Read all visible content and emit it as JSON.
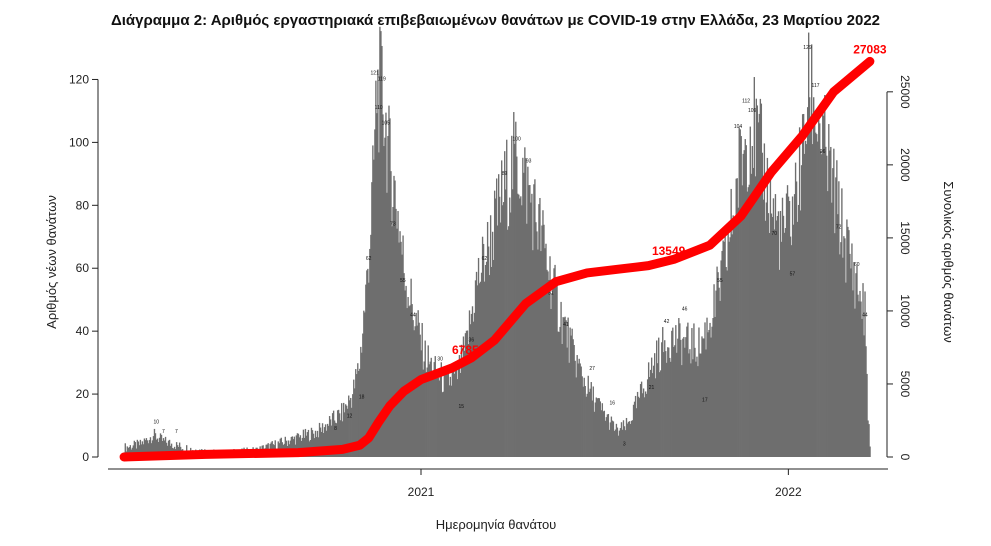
{
  "chart_data": {
    "type": "bar",
    "title": "Διάγραμμα 2: Αριθμός εργαστηριακά επιβεβαιωμένων θανάτων με COVID-19 στην Ελλάδα, 23 Μαρτίου 2022",
    "xlabel": "Ημερομηνία θανάτου",
    "ylabel": "Αριθμός νέων θανάτων",
    "y2label": "Συνολικός αριθμός θανάτων",
    "x_start": "2020-03-12",
    "x_end": "2022-03-23",
    "xlim": [
      "2020-02-25",
      "2022-04-10"
    ],
    "x_ticks": [
      {
        "date": "2021-01-01",
        "label": "2021"
      },
      {
        "date": "2022-01-01",
        "label": "2022"
      }
    ],
    "ylim": [
      0,
      130
    ],
    "y_ticks": [
      0,
      20,
      40,
      60,
      80,
      100,
      120
    ],
    "y2lim": [
      0,
      28000
    ],
    "y2_ticks": [
      0,
      5000,
      10000,
      15000,
      20000,
      25000
    ],
    "bar_color": "#6e6e6e",
    "line_color": "#ff0000",
    "series": [
      {
        "name": "",
        "kind": "bars",
        "keypoints": [
          {
            "date": "2020-03-12",
            "value": 3
          },
          {
            "date": "2020-03-28",
            "value": 4
          },
          {
            "date": "2020-04-10",
            "value": 7
          },
          {
            "date": "2020-04-20",
            "value": 5
          },
          {
            "date": "2020-05-10",
            "value": 3
          },
          {
            "date": "2020-06-15",
            "value": 1
          },
          {
            "date": "2020-07-20",
            "value": 2
          },
          {
            "date": "2020-08-20",
            "value": 5
          },
          {
            "date": "2020-09-20",
            "value": 8
          },
          {
            "date": "2020-10-15",
            "value": 14
          },
          {
            "date": "2020-10-25",
            "value": 20
          },
          {
            "date": "2020-11-01",
            "value": 30
          },
          {
            "date": "2020-11-08",
            "value": 55
          },
          {
            "date": "2020-11-14",
            "value": 85
          },
          {
            "date": "2020-11-18",
            "value": 117
          },
          {
            "date": "2020-11-24",
            "value": 115
          },
          {
            "date": "2020-11-30",
            "value": 95
          },
          {
            "date": "2020-12-08",
            "value": 80
          },
          {
            "date": "2020-12-15",
            "value": 60
          },
          {
            "date": "2020-12-25",
            "value": 45
          },
          {
            "date": "2021-01-05",
            "value": 32
          },
          {
            "date": "2021-01-15",
            "value": 27
          },
          {
            "date": "2021-01-25",
            "value": 24
          },
          {
            "date": "2021-02-05",
            "value": 25
          },
          {
            "date": "2021-02-15",
            "value": 35
          },
          {
            "date": "2021-02-25",
            "value": 55
          },
          {
            "date": "2021-03-10",
            "value": 68
          },
          {
            "date": "2021-03-25",
            "value": 85
          },
          {
            "date": "2021-04-05",
            "value": 95
          },
          {
            "date": "2021-04-12",
            "value": 90
          },
          {
            "date": "2021-04-20",
            "value": 82
          },
          {
            "date": "2021-05-01",
            "value": 70
          },
          {
            "date": "2021-05-15",
            "value": 50
          },
          {
            "date": "2021-06-01",
            "value": 33
          },
          {
            "date": "2021-06-15",
            "value": 22
          },
          {
            "date": "2021-07-01",
            "value": 14
          },
          {
            "date": "2021-07-15",
            "value": 8
          },
          {
            "date": "2021-07-25",
            "value": 10
          },
          {
            "date": "2021-08-05",
            "value": 18
          },
          {
            "date": "2021-08-20",
            "value": 30
          },
          {
            "date": "2021-09-05",
            "value": 38
          },
          {
            "date": "2021-09-20",
            "value": 36
          },
          {
            "date": "2021-10-05",
            "value": 35
          },
          {
            "date": "2021-10-20",
            "value": 48
          },
          {
            "date": "2021-11-01",
            "value": 65
          },
          {
            "date": "2021-11-15",
            "value": 95
          },
          {
            "date": "2021-11-25",
            "value": 107
          },
          {
            "date": "2021-12-05",
            "value": 95
          },
          {
            "date": "2021-12-15",
            "value": 80
          },
          {
            "date": "2021-12-25",
            "value": 70
          },
          {
            "date": "2022-01-05",
            "value": 78
          },
          {
            "date": "2022-01-15",
            "value": 95
          },
          {
            "date": "2022-01-22",
            "value": 118
          },
          {
            "date": "2022-01-28",
            "value": 110
          },
          {
            "date": "2022-02-10",
            "value": 92
          },
          {
            "date": "2022-02-25",
            "value": 70
          },
          {
            "date": "2022-03-10",
            "value": 55
          },
          {
            "date": "2022-03-18",
            "value": 45
          },
          {
            "date": "2022-03-21",
            "value": 15
          },
          {
            "date": "2022-03-23",
            "value": 3
          }
        ]
      },
      {
        "name": "",
        "kind": "cumulative-line",
        "keypoints": [
          {
            "date": "2020-03-12",
            "value": 0
          },
          {
            "date": "2020-06-01",
            "value": 180
          },
          {
            "date": "2020-09-01",
            "value": 300
          },
          {
            "date": "2020-10-15",
            "value": 520
          },
          {
            "date": "2020-11-01",
            "value": 800
          },
          {
            "date": "2020-11-10",
            "value": 1300
          },
          {
            "date": "2020-11-20",
            "value": 2400
          },
          {
            "date": "2020-12-01",
            "value": 3500
          },
          {
            "date": "2020-12-15",
            "value": 4500
          },
          {
            "date": "2021-01-01",
            "value": 5300
          },
          {
            "date": "2021-02-01",
            "value": 6100
          },
          {
            "date": "2021-02-20",
            "value": 6785
          },
          {
            "date": "2021-03-15",
            "value": 8000
          },
          {
            "date": "2021-04-15",
            "value": 10500
          },
          {
            "date": "2021-05-15",
            "value": 12000
          },
          {
            "date": "2021-06-15",
            "value": 12600
          },
          {
            "date": "2021-07-15",
            "value": 12850
          },
          {
            "date": "2021-08-15",
            "value": 13100
          },
          {
            "date": "2021-09-10",
            "value": 13549
          },
          {
            "date": "2021-10-15",
            "value": 14500
          },
          {
            "date": "2021-11-15",
            "value": 16500
          },
          {
            "date": "2021-12-15",
            "value": 19500
          },
          {
            "date": "2022-01-15",
            "value": 22000
          },
          {
            "date": "2022-02-15",
            "value": 25000
          },
          {
            "date": "2022-03-23",
            "value": 27083
          }
        ]
      }
    ],
    "bar_labels": [
      {
        "date": "2020-04-13",
        "text": "10"
      },
      {
        "date": "2020-04-20",
        "text": "7"
      },
      {
        "date": "2020-05-03",
        "text": "7"
      },
      {
        "date": "2020-10-08",
        "text": "8"
      },
      {
        "date": "2020-10-22",
        "text": "12"
      },
      {
        "date": "2020-11-03",
        "text": "18"
      },
      {
        "date": "2020-11-10",
        "text": "62"
      },
      {
        "date": "2020-11-16",
        "text": "121"
      },
      {
        "date": "2020-11-20",
        "text": "110"
      },
      {
        "date": "2020-11-23",
        "text": "119"
      },
      {
        "date": "2020-11-27",
        "text": "105"
      },
      {
        "date": "2020-12-04",
        "text": "73"
      },
      {
        "date": "2020-12-14",
        "text": "55"
      },
      {
        "date": "2020-12-24",
        "text": "44"
      },
      {
        "date": "2021-01-20",
        "text": "30"
      },
      {
        "date": "2021-02-10",
        "text": "15"
      },
      {
        "date": "2021-02-20",
        "text": "36"
      },
      {
        "date": "2021-03-05",
        "text": "62"
      },
      {
        "date": "2021-03-25",
        "text": "89"
      },
      {
        "date": "2021-04-06",
        "text": "100"
      },
      {
        "date": "2021-04-18",
        "text": "93"
      },
      {
        "date": "2021-05-10",
        "text": "51"
      },
      {
        "date": "2021-05-25",
        "text": "41"
      },
      {
        "date": "2021-06-20",
        "text": "27"
      },
      {
        "date": "2021-07-10",
        "text": "16"
      },
      {
        "date": "2021-07-22",
        "text": "3"
      },
      {
        "date": "2021-08-18",
        "text": "21"
      },
      {
        "date": "2021-09-02",
        "text": "42"
      },
      {
        "date": "2021-09-20",
        "text": "46"
      },
      {
        "date": "2021-10-10",
        "text": "17"
      },
      {
        "date": "2021-10-25",
        "text": "55"
      },
      {
        "date": "2021-11-12",
        "text": "104"
      },
      {
        "date": "2021-11-20",
        "text": "112"
      },
      {
        "date": "2021-11-26",
        "text": "109"
      },
      {
        "date": "2021-12-18",
        "text": "70"
      },
      {
        "date": "2022-01-05",
        "text": "57"
      },
      {
        "date": "2022-01-20",
        "text": "129"
      },
      {
        "date": "2022-01-28",
        "text": "117"
      },
      {
        "date": "2022-02-04",
        "text": "96"
      },
      {
        "date": "2022-02-20",
        "text": "72"
      },
      {
        "date": "2022-03-10",
        "text": "60"
      },
      {
        "date": "2022-03-18",
        "text": "44"
      }
    ],
    "annotations": [
      {
        "text": "6785",
        "date": "2021-02-20",
        "value": 6785,
        "color": "#ff0000"
      },
      {
        "text": "13549",
        "date": "2021-09-10",
        "value": 13549,
        "color": "#ff0000"
      },
      {
        "text": "27083",
        "date": "2022-03-23",
        "value": 27083,
        "color": "#ff0000"
      }
    ],
    "grid": false,
    "legend": "none"
  }
}
